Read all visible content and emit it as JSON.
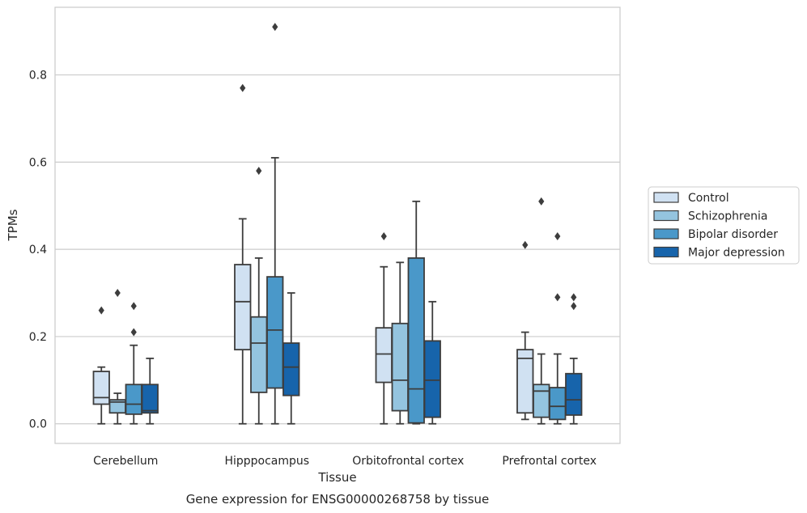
{
  "caption": "Gene expression for ENSG00000268758 by tissue",
  "chart_data": {
    "type": "boxplot",
    "xlabel": "Tissue",
    "ylabel": "TPMs",
    "ylim": [
      -0.045,
      0.955
    ],
    "yticks": [
      "0.0",
      "0.2",
      "0.4",
      "0.6",
      "0.8"
    ],
    "grid": "horizontal",
    "legend_position": "right",
    "categories": [
      "Cerebellum",
      "Hipppocampus",
      "Orbitofrontal cortex",
      "Prefrontal cortex"
    ],
    "series": [
      {
        "name": "Control",
        "color": "#d0e1f2",
        "boxes": [
          {
            "q1": 0.045,
            "median": 0.06,
            "q3": 0.12,
            "whisker_low": 0.0,
            "whisker_high": 0.13,
            "outliers": [
              0.26
            ]
          },
          {
            "q1": 0.17,
            "median": 0.28,
            "q3": 0.365,
            "whisker_low": 0.0,
            "whisker_high": 0.47,
            "outliers": [
              0.77
            ]
          },
          {
            "q1": 0.095,
            "median": 0.16,
            "q3": 0.22,
            "whisker_low": 0.0,
            "whisker_high": 0.36,
            "outliers": [
              0.43
            ]
          },
          {
            "q1": 0.025,
            "median": 0.15,
            "q3": 0.17,
            "whisker_low": 0.01,
            "whisker_high": 0.21,
            "outliers": [
              0.41
            ]
          }
        ]
      },
      {
        "name": "Schizophrenia",
        "color": "#94c4df",
        "boxes": [
          {
            "q1": 0.025,
            "median": 0.05,
            "q3": 0.055,
            "whisker_low": 0.0,
            "whisker_high": 0.07,
            "outliers": [
              0.3
            ]
          },
          {
            "q1": 0.072,
            "median": 0.185,
            "q3": 0.245,
            "whisker_low": 0.0,
            "whisker_high": 0.38,
            "outliers": [
              0.58
            ]
          },
          {
            "q1": 0.03,
            "median": 0.1,
            "q3": 0.23,
            "whisker_low": 0.0,
            "whisker_high": 0.37,
            "outliers": []
          },
          {
            "q1": 0.015,
            "median": 0.075,
            "q3": 0.09,
            "whisker_low": 0.0,
            "whisker_high": 0.16,
            "outliers": [
              0.51
            ]
          }
        ]
      },
      {
        "name": "Bipolar disorder",
        "color": "#4a98c9",
        "boxes": [
          {
            "q1": 0.022,
            "median": 0.045,
            "q3": 0.09,
            "whisker_low": 0.0,
            "whisker_high": 0.18,
            "outliers": [
              0.21,
              0.27
            ]
          },
          {
            "q1": 0.082,
            "median": 0.215,
            "q3": 0.337,
            "whisker_low": 0.0,
            "whisker_high": 0.61,
            "outliers": [
              0.91
            ]
          },
          {
            "q1": 0.002,
            "median": 0.08,
            "q3": 0.38,
            "whisker_low": 0.0,
            "whisker_high": 0.51,
            "outliers": []
          },
          {
            "q1": 0.01,
            "median": 0.04,
            "q3": 0.083,
            "whisker_low": 0.0,
            "whisker_high": 0.16,
            "outliers": [
              0.29,
              0.43
            ]
          }
        ]
      },
      {
        "name": "Major depression",
        "color": "#1764ab",
        "boxes": [
          {
            "q1": 0.025,
            "median": 0.03,
            "q3": 0.09,
            "whisker_low": 0.0,
            "whisker_high": 0.15,
            "outliers": []
          },
          {
            "q1": 0.065,
            "median": 0.13,
            "q3": 0.185,
            "whisker_low": 0.0,
            "whisker_high": 0.3,
            "outliers": []
          },
          {
            "q1": 0.015,
            "median": 0.1,
            "q3": 0.19,
            "whisker_low": 0.0,
            "whisker_high": 0.28,
            "outliers": []
          },
          {
            "q1": 0.02,
            "median": 0.055,
            "q3": 0.115,
            "whisker_low": 0.0,
            "whisker_high": 0.15,
            "outliers": [
              0.27,
              0.29
            ]
          }
        ]
      }
    ]
  }
}
